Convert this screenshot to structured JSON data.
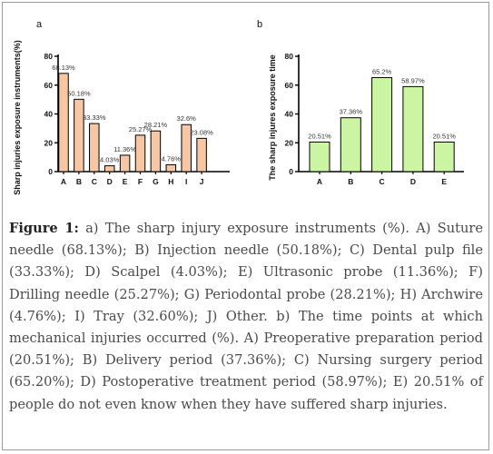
{
  "chart_data": [
    {
      "type": "bar",
      "panel": "a",
      "categories": [
        "A",
        "B",
        "C",
        "D",
        "E",
        "F",
        "G",
        "H",
        "I",
        "J"
      ],
      "values": [
        68.13,
        50.18,
        33.33,
        4.03,
        11.36,
        25.27,
        28.21,
        4.76,
        32.6,
        23.08
      ],
      "data_labels": [
        "68.13%",
        "50.18%",
        "33.33%",
        "4.03%",
        "11.36%",
        "25.27%",
        "28.21%",
        "4.76%",
        "32.6%",
        "23.08%"
      ],
      "ylabel": "Sharp injuries exposure instruments(%)",
      "ylim": [
        0,
        80
      ],
      "yticks": [
        0,
        20,
        40,
        60,
        80
      ],
      "bar_color": "#f7c7a3",
      "grid": false
    },
    {
      "type": "bar",
      "panel": "b",
      "categories": [
        "A",
        "B",
        "C",
        "D",
        "E"
      ],
      "values": [
        20.51,
        37.36,
        65.2,
        58.97,
        20.51
      ],
      "data_labels": [
        "20.51%",
        "37.36%",
        "65.2%",
        "58.97%",
        "20.51%"
      ],
      "ylabel": "The sharp injures exposure time",
      "ylim": [
        0,
        80
      ],
      "yticks": [
        0,
        20,
        40,
        60,
        80
      ],
      "bar_color": "#ccf5a3",
      "grid": false
    }
  ],
  "caption": {
    "label": "Figure 1:",
    "text": " a) The sharp injury exposure instruments (%). A) Suture needle (68.13%); B) Injection needle (50.18%); C) Dental pulp file (33.33%); D) Scalpel (4.03%); E) Ultrasonic probe (11.36%); F) Drilling needle (25.27%); G) Periodontal probe (28.21%); H) Archwire (4.76%); I) Tray (32.60%); J) Other. b) The time points at which mechanical injuries occurred (%). A) Preoperative preparation period (20.51%); B) Delivery period (37.36%); C) Nursing surgery period (65.20%); D) Postoperative treatment period (58.97%); E) 20.51% of people do not even know when they have suffered sharp injuries."
  }
}
